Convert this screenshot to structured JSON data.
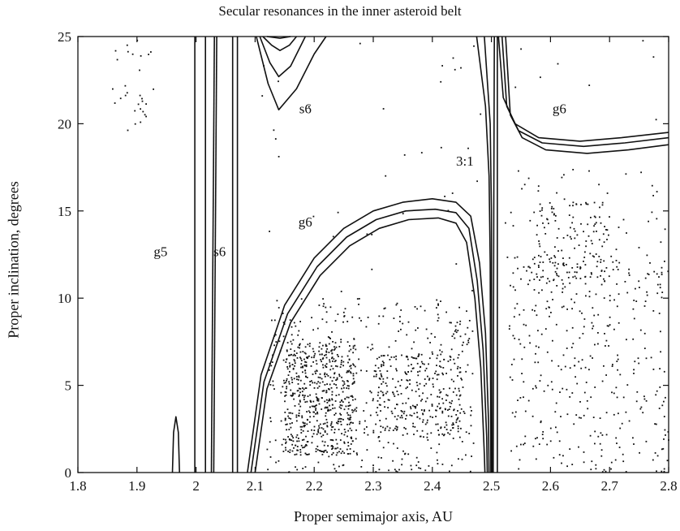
{
  "chart_data": {
    "type": "scatter",
    "title": "Secular resonances in the inner asteroid belt",
    "xlabel": "Proper semimajor axis, AU",
    "ylabel": "Proper inclination, degrees",
    "xlim": [
      1.8,
      2.8
    ],
    "ylim": [
      0,
      25
    ],
    "xticks": [
      "1.8",
      "1.9",
      "2",
      "2.1",
      "2.2",
      "2.3",
      "2.4",
      "2.5",
      "2.6",
      "2.7",
      "2.8"
    ],
    "yticks": [
      "0",
      "5",
      "10",
      "15",
      "20",
      "25"
    ],
    "grid": false,
    "annotations": [
      {
        "text": "g5",
        "x": 1.94,
        "y": 12.4
      },
      {
        "text": "s6",
        "x": 2.04,
        "y": 12.4
      },
      {
        "text": "s6",
        "x": 2.185,
        "y": 20.6
      },
      {
        "text": "g6",
        "x": 2.185,
        "y": 14.1
      },
      {
        "text": "3:1",
        "x": 2.455,
        "y": 17.6
      },
      {
        "text": "g6",
        "x": 2.615,
        "y": 20.6
      }
    ],
    "resonance_curves": [
      {
        "name": "g5",
        "points": [
          [
            1.96,
            0
          ],
          [
            1.962,
            2.3
          ],
          [
            1.966,
            3.2
          ],
          [
            1.97,
            2.3
          ],
          [
            1.972,
            0
          ]
        ]
      },
      {
        "name": "s6",
        "points": [
          [
            1.998,
            0
          ],
          [
            1.998,
            25
          ]
        ]
      },
      {
        "name": "s6",
        "points": [
          [
            2.016,
            0
          ],
          [
            2.016,
            25
          ]
        ]
      },
      {
        "name": "s6",
        "points": [
          [
            2.026,
            0
          ],
          [
            2.031,
            25
          ]
        ]
      },
      {
        "name": "s6",
        "points": [
          [
            2.03,
            0
          ],
          [
            2.035,
            25
          ]
        ]
      },
      {
        "name": "s6",
        "points": [
          [
            2.062,
            0
          ],
          [
            2.062,
            25
          ]
        ]
      },
      {
        "name": "s6",
        "points": [
          [
            2.07,
            0
          ],
          [
            2.07,
            25
          ]
        ]
      },
      {
        "name": "s6",
        "points": [
          [
            2.102,
            25
          ],
          [
            2.122,
            22.3
          ],
          [
            2.14,
            20.8
          ],
          [
            2.17,
            22.0
          ],
          [
            2.2,
            24.0
          ],
          [
            2.22,
            25
          ]
        ]
      },
      {
        "name": "s6",
        "points": [
          [
            2.108,
            25
          ],
          [
            2.125,
            23.5
          ],
          [
            2.14,
            22.7
          ],
          [
            2.16,
            23.3
          ],
          [
            2.185,
            25
          ]
        ]
      },
      {
        "name": "s6",
        "points": [
          [
            2.113,
            25
          ],
          [
            2.128,
            24.5
          ],
          [
            2.142,
            24.2
          ],
          [
            2.158,
            24.5
          ],
          [
            2.17,
            25
          ]
        ]
      },
      {
        "name": "s6",
        "points": [
          [
            2.12,
            25
          ],
          [
            2.142,
            24.9
          ],
          [
            2.16,
            25
          ]
        ]
      },
      {
        "name": "g6",
        "points": [
          [
            2.087,
            0
          ],
          [
            2.11,
            5.6
          ],
          [
            2.15,
            9.6
          ],
          [
            2.2,
            12.3
          ],
          [
            2.25,
            14.0
          ],
          [
            2.3,
            15.0
          ],
          [
            2.35,
            15.5
          ],
          [
            2.4,
            15.7
          ],
          [
            2.44,
            15.5
          ],
          [
            2.465,
            14.7
          ],
          [
            2.48,
            12.0
          ],
          [
            2.49,
            8.0
          ],
          [
            2.495,
            3.0
          ],
          [
            2.496,
            0
          ]
        ]
      },
      {
        "name": "g6",
        "points": [
          [
            2.093,
            0
          ],
          [
            2.115,
            5.2
          ],
          [
            2.155,
            9.1
          ],
          [
            2.205,
            11.8
          ],
          [
            2.255,
            13.5
          ],
          [
            2.305,
            14.5
          ],
          [
            2.355,
            15.0
          ],
          [
            2.405,
            15.1
          ],
          [
            2.44,
            14.9
          ],
          [
            2.462,
            14.0
          ],
          [
            2.476,
            11.0
          ],
          [
            2.486,
            7.0
          ],
          [
            2.492,
            2.0
          ],
          [
            2.493,
            0
          ]
        ]
      },
      {
        "name": "g6",
        "points": [
          [
            2.1,
            0
          ],
          [
            2.12,
            4.8
          ],
          [
            2.16,
            8.6
          ],
          [
            2.21,
            11.3
          ],
          [
            2.26,
            13.0
          ],
          [
            2.31,
            14.0
          ],
          [
            2.36,
            14.5
          ],
          [
            2.41,
            14.6
          ],
          [
            2.44,
            14.3
          ],
          [
            2.458,
            13.2
          ],
          [
            2.472,
            10.0
          ],
          [
            2.482,
            6.0
          ],
          [
            2.488,
            1.0
          ],
          [
            2.489,
            0
          ]
        ]
      },
      {
        "name": "3:1",
        "points": [
          [
            2.475,
            25
          ],
          [
            2.49,
            21.0
          ],
          [
            2.496,
            17.0
          ],
          [
            2.498,
            12.0
          ],
          [
            2.499,
            0
          ]
        ]
      },
      {
        "name": "3:1",
        "points": [
          [
            2.488,
            25
          ],
          [
            2.498,
            20.0
          ],
          [
            2.5,
            15.0
          ],
          [
            2.501,
            0
          ]
        ]
      },
      {
        "name": "3:1",
        "points": [
          [
            2.503,
            0
          ],
          [
            2.504,
            15.0
          ],
          [
            2.505,
            25
          ]
        ]
      },
      {
        "name": "3:1",
        "points": [
          [
            2.51,
            0
          ],
          [
            2.51,
            25
          ]
        ]
      },
      {
        "name": "g6",
        "points": [
          [
            2.512,
            25
          ],
          [
            2.52,
            21.5
          ],
          [
            2.54,
            20.0
          ],
          [
            2.58,
            19.2
          ],
          [
            2.65,
            19.0
          ],
          [
            2.72,
            19.2
          ],
          [
            2.8,
            19.5
          ]
        ]
      },
      {
        "name": "g6",
        "points": [
          [
            2.518,
            25
          ],
          [
            2.526,
            21.0
          ],
          [
            2.546,
            19.6
          ],
          [
            2.586,
            18.9
          ],
          [
            2.656,
            18.7
          ],
          [
            2.726,
            18.9
          ],
          [
            2.8,
            19.2
          ]
        ]
      },
      {
        "name": "g6",
        "points": [
          [
            2.524,
            25
          ],
          [
            2.532,
            20.5
          ],
          [
            2.552,
            19.2
          ],
          [
            2.592,
            18.5
          ],
          [
            2.662,
            18.3
          ],
          [
            2.732,
            18.5
          ],
          [
            2.8,
            18.8
          ]
        ]
      }
    ],
    "point_clouds": [
      {
        "xmin": 1.85,
        "xmax": 1.93,
        "ymin": 19.5,
        "ymax": 24.8,
        "count": 30
      },
      {
        "xmin": 2.15,
        "xmax": 2.27,
        "ymin": 1.0,
        "ymax": 7.5,
        "count": 520
      },
      {
        "xmin": 2.12,
        "xmax": 2.47,
        "ymin": 0.0,
        "ymax": 10.0,
        "count": 450
      },
      {
        "xmin": 2.3,
        "xmax": 2.45,
        "ymin": 2.0,
        "ymax": 6.8,
        "count": 250
      },
      {
        "xmin": 2.1,
        "xmax": 2.49,
        "ymin": 7.0,
        "ymax": 25.0,
        "count": 40
      },
      {
        "xmin": 2.53,
        "xmax": 2.8,
        "ymin": 0.0,
        "ymax": 12.5,
        "count": 380
      },
      {
        "xmin": 2.57,
        "xmax": 2.7,
        "ymin": 11.0,
        "ymax": 15.5,
        "count": 120
      },
      {
        "xmin": 2.52,
        "xmax": 2.8,
        "ymin": 10.0,
        "ymax": 17.5,
        "count": 70
      },
      {
        "xmin": 2.53,
        "xmax": 2.8,
        "ymin": 20.0,
        "ymax": 25.0,
        "count": 8
      }
    ]
  }
}
